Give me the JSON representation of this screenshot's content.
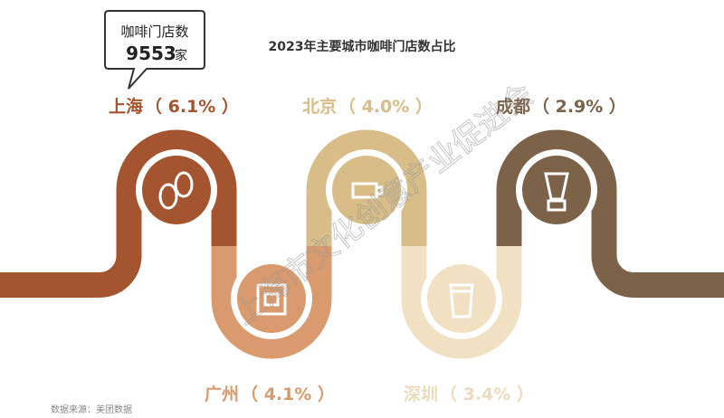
{
  "title": "2023年主要城市咖啡门店数占比",
  "callout": {
    "label": "咖啡门店数",
    "value": "9553",
    "unit": "家"
  },
  "cities": [
    {
      "name": "上海",
      "share": "（ 6.1% ）"
    },
    {
      "name": "广州",
      "share": "（ 4.1% ）"
    },
    {
      "name": "北京",
      "share": "（ 4.0% ）"
    },
    {
      "name": "深圳",
      "share": "（ 3.4% ）"
    },
    {
      "name": "成都",
      "share": "（ 2.9% ）"
    }
  ],
  "source": "数据来源：美团数据",
  "watermark": "上海市文化创意产业促进会"
}
